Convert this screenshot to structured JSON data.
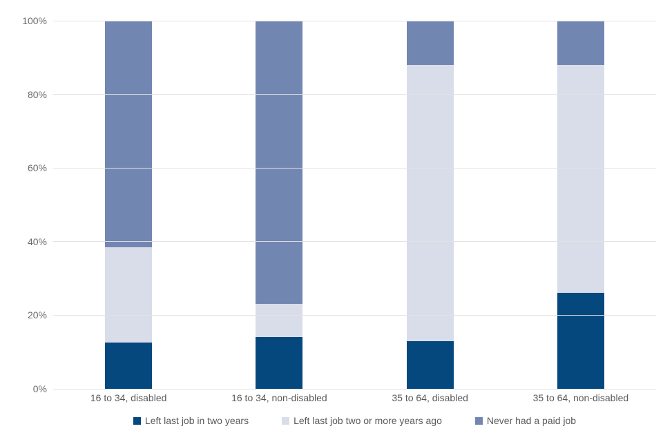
{
  "chart_data": {
    "type": "bar",
    "subtype": "stacked-100",
    "title": "",
    "xlabel": "",
    "ylabel": "",
    "categories": [
      "16 to 34, disabled",
      "16 to 34, non-disabled",
      "35 to 64, disabled",
      "35 to 64, non-disabled"
    ],
    "series": [
      {
        "name": "Left last job in two years",
        "color": "#05487e",
        "values": [
          12.5,
          14,
          13,
          26
        ]
      },
      {
        "name": "Left last job two or more years ago",
        "color": "#d9dde9",
        "values": [
          26,
          9,
          75,
          62
        ]
      },
      {
        "name": "Never had a paid job",
        "color": "#7286b2",
        "values": [
          61.5,
          77,
          12,
          12
        ]
      }
    ],
    "ylim": [
      0,
      100
    ],
    "yticks": [
      {
        "value": 0,
        "label": "0%"
      },
      {
        "value": 20,
        "label": "20%"
      },
      {
        "value": 40,
        "label": "40%"
      },
      {
        "value": 60,
        "label": "60%"
      },
      {
        "value": 80,
        "label": "80%"
      },
      {
        "value": 100,
        "label": "100%"
      }
    ],
    "grid": true,
    "gridline_color": "#e2e2e2",
    "legend_position": "bottom"
  }
}
